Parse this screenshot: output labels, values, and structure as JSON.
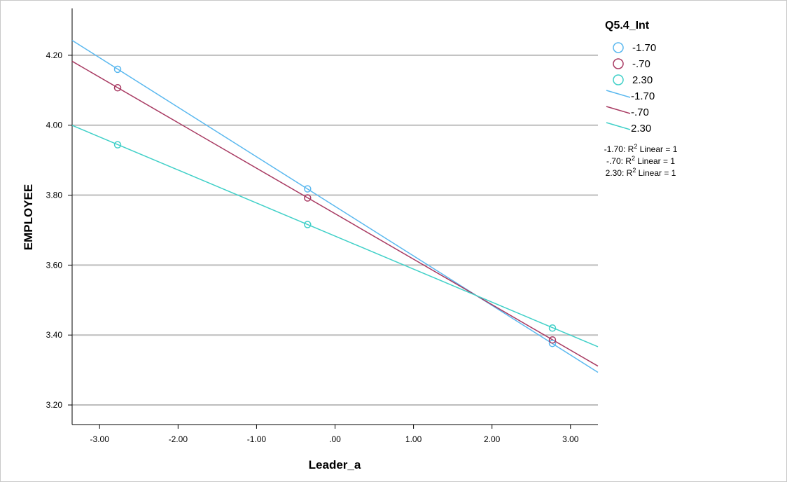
{
  "chart_data": {
    "type": "scatter",
    "title": "",
    "xlabel": "Leader_a",
    "ylabel": "EMPLOYEE",
    "xlim": [
      -3.35,
      3.35
    ],
    "ylim": [
      3.144,
      4.334
    ],
    "grid": "horizontal",
    "legend_position": "top-right",
    "x_ticks": [
      -3,
      -2,
      -1,
      0,
      1,
      2,
      3
    ],
    "x_tick_labels": [
      "-3.00",
      "-2.00",
      "-1.00",
      ".00",
      "1.00",
      "2.00",
      "3.00"
    ],
    "y_ticks": [
      3.2,
      3.4,
      3.6,
      3.8,
      4.0,
      4.2
    ],
    "y_tick_labels": [
      "3.20",
      "3.40",
      "3.60",
      "3.80",
      "4.00",
      "4.20"
    ],
    "legend_title": "Q5.4_Int",
    "series": [
      {
        "name": "-1.70",
        "color": "#5ab8ef",
        "points": [
          {
            "x": -2.77,
            "y": 4.16
          },
          {
            "x": -0.35,
            "y": 3.818
          },
          {
            "x": 2.77,
            "y": 3.376
          }
        ],
        "fit": {
          "slope": -0.1417,
          "intercept": 3.768
        }
      },
      {
        "name": "-.70",
        "color": "#a83a62",
        "points": [
          {
            "x": -2.77,
            "y": 4.107
          },
          {
            "x": -0.35,
            "y": 3.792
          },
          {
            "x": 2.77,
            "y": 3.386
          }
        ],
        "fit": {
          "slope": -0.1301,
          "intercept": 3.747
        }
      },
      {
        "name": "2.30",
        "color": "#40d0c8",
        "points": [
          {
            "x": -2.77,
            "y": 3.944
          },
          {
            "x": -0.35,
            "y": 3.716
          },
          {
            "x": 2.77,
            "y": 3.42
          }
        ],
        "fit": {
          "slope": -0.0945,
          "intercept": 3.683
        }
      }
    ],
    "fit_annotations": [
      {
        "label": "-1.70: R",
        "sup": "2",
        "rest": " Linear = 1"
      },
      {
        "label": "-.70: R",
        "sup": "2",
        "rest": " Linear = 1"
      },
      {
        "label": "2.30: R",
        "sup": "2",
        "rest": " Linear = 1"
      }
    ]
  }
}
